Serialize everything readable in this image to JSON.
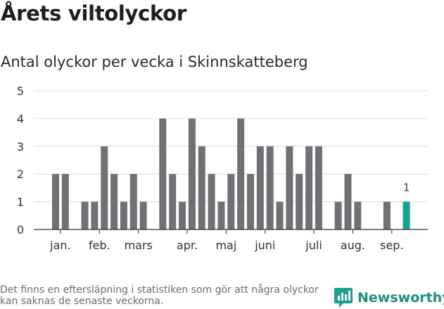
{
  "title": "Årets viltolyckor",
  "subtitle": "Antal olyckor per vecka i Skinnskatteberg",
  "footnote": "Det finns en eftersläpning i statistiken som gör att några olyckor kan saknas de senaste veckorna.",
  "brand": {
    "name": "Newsworthy",
    "icon": "newsworthy-logo-icon",
    "color": "#1f9e92"
  },
  "chart_data": {
    "type": "bar",
    "title": "Antal olyckor per vecka i Skinnskatteberg",
    "xlabel": "",
    "ylabel": "",
    "ylim": [
      0,
      5
    ],
    "yticks": [
      0,
      1,
      2,
      3,
      4,
      5
    ],
    "grid": true,
    "bar_color": "#717075",
    "highlight_color": "#13a394",
    "weeks": [
      1,
      2,
      3,
      4,
      5,
      6,
      7,
      8,
      9,
      10,
      11,
      12,
      13,
      14,
      15,
      16,
      17,
      18,
      19,
      20,
      21,
      22,
      23,
      24,
      25,
      26,
      27,
      28,
      29,
      30,
      31,
      32,
      33,
      34,
      35,
      36,
      37,
      38
    ],
    "values": [
      2,
      2,
      0,
      1,
      1,
      3,
      2,
      1,
      2,
      1,
      0,
      4,
      2,
      1,
      4,
      3,
      2,
      1,
      2,
      4,
      2,
      3,
      3,
      1,
      3,
      2,
      3,
      3,
      0,
      1,
      2,
      1,
      0,
      0,
      1,
      0,
      1,
      0
    ],
    "highlight_week": 37,
    "data_labels": [
      {
        "week": 37,
        "text": "1"
      }
    ],
    "month_labels": [
      {
        "label": "jan.",
        "week": 1.5
      },
      {
        "label": "feb.",
        "week": 5.5
      },
      {
        "label": "mars",
        "week": 9.5
      },
      {
        "label": "apr.",
        "week": 14.5
      },
      {
        "label": "maj",
        "week": 18.5
      },
      {
        "label": "juni",
        "week": 22.5
      },
      {
        "label": "juli",
        "week": 27.5
      },
      {
        "label": "aug.",
        "week": 31.5
      },
      {
        "label": "sep.",
        "week": 35.5
      }
    ]
  }
}
